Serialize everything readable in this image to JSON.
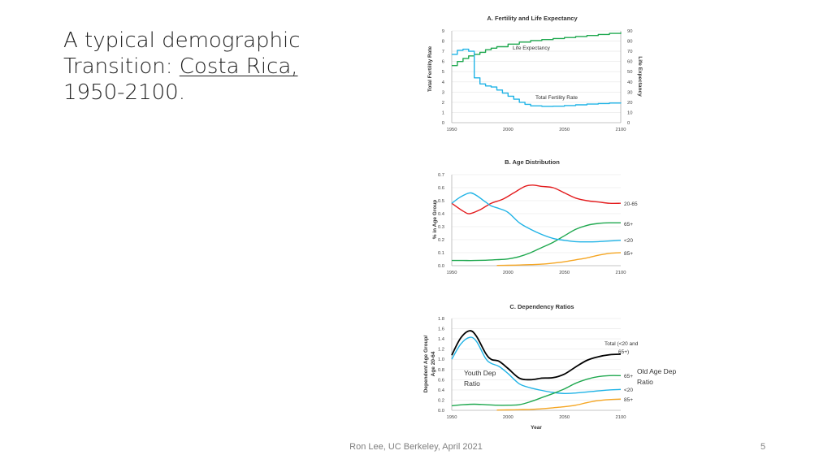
{
  "slide": {
    "title_line1": "A typical demographic",
    "title_line2_prefix": "Transition: ",
    "title_line2_emphasis": "Costa Rica,",
    "title_line3": "1950-2100.",
    "footer": "Ron Lee, UC Berkeley, April 2021",
    "page_number": "5"
  },
  "chart_data": [
    {
      "type": "line",
      "title": "A. Fertility and Life Expectancy",
      "ylabel": "Total Fertility Rate",
      "y2label": "Life Expectancy",
      "xlabel": "",
      "xlim": [
        1950,
        2100
      ],
      "ylim": [
        0,
        9
      ],
      "y2lim": [
        0,
        90
      ],
      "xticks": [
        1950,
        2000,
        2050,
        2100
      ],
      "yticks": [
        0,
        1,
        2,
        3,
        4,
        5,
        6,
        7,
        8,
        9
      ],
      "y2ticks": [
        0,
        10,
        20,
        30,
        40,
        50,
        60,
        70,
        80,
        90
      ],
      "series": [
        {
          "name": "Life Expectancy",
          "axis": "right",
          "color": "#1fa84f",
          "step": true,
          "x": [
            1950,
            1955,
            1960,
            1965,
            1970,
            1975,
            1980,
            1985,
            1990,
            2000,
            2010,
            2020,
            2030,
            2040,
            2050,
            2060,
            2070,
            2080,
            2090,
            2100
          ],
          "y": [
            56,
            60,
            63,
            65.5,
            67,
            69,
            71.5,
            73,
            74.5,
            77,
            79,
            80.5,
            81.5,
            82.5,
            83.5,
            84.5,
            85.5,
            86.5,
            87.5,
            88.5
          ]
        },
        {
          "name": "Total Fertility Rate",
          "axis": "left",
          "color": "#1fb3e6",
          "step": true,
          "x": [
            1950,
            1955,
            1960,
            1965,
            1970,
            1975,
            1980,
            1985,
            1990,
            1995,
            2000,
            2005,
            2010,
            2015,
            2020,
            2030,
            2040,
            2050,
            2060,
            2070,
            2080,
            2090,
            2100
          ],
          "y": [
            6.7,
            7.1,
            7.2,
            7.0,
            4.4,
            3.8,
            3.6,
            3.5,
            3.2,
            2.9,
            2.6,
            2.3,
            2.0,
            1.8,
            1.65,
            1.6,
            1.62,
            1.68,
            1.75,
            1.82,
            1.88,
            1.93,
            1.97
          ]
        }
      ],
      "annotations": [
        "Life Expectancy",
        "Total Fertility Rate"
      ]
    },
    {
      "type": "line",
      "title": "B. Age Distribution",
      "ylabel": "% in Age Group",
      "xlabel": "",
      "xlim": [
        1950,
        2100
      ],
      "ylim": [
        0,
        0.7
      ],
      "xticks": [
        1950,
        2000,
        2050,
        2100
      ],
      "yticks": [
        "0.0",
        "0.1",
        "0.2",
        "0.3",
        "0.4",
        "0.5",
        "0.6",
        "0.7"
      ],
      "series": [
        {
          "name": "20-65",
          "color": "#e31a1c",
          "x": [
            1950,
            1960,
            1966,
            1975,
            1985,
            1995,
            2005,
            2015,
            2022,
            2030,
            2040,
            2050,
            2060,
            2070,
            2080,
            2090,
            2100
          ],
          "y": [
            0.48,
            0.42,
            0.4,
            0.43,
            0.48,
            0.51,
            0.56,
            0.61,
            0.62,
            0.61,
            0.6,
            0.56,
            0.52,
            0.5,
            0.49,
            0.48,
            0.48
          ]
        },
        {
          "name": "65+",
          "color": "#1fa84f",
          "x": [
            1950,
            1960,
            1970,
            1980,
            1990,
            2000,
            2010,
            2020,
            2030,
            2040,
            2050,
            2060,
            2070,
            2080,
            2090,
            2100
          ],
          "y": [
            0.04,
            0.04,
            0.04,
            0.042,
            0.046,
            0.052,
            0.07,
            0.1,
            0.14,
            0.18,
            0.23,
            0.28,
            0.31,
            0.325,
            0.33,
            0.33
          ]
        },
        {
          "name": "<20",
          "color": "#1fb3e6",
          "x": [
            1950,
            1958,
            1966,
            1972,
            1980,
            1985,
            1992,
            2000,
            2010,
            2020,
            2030,
            2040,
            2050,
            2060,
            2070,
            2080,
            2090,
            2100
          ],
          "y": [
            0.48,
            0.53,
            0.56,
            0.54,
            0.49,
            0.46,
            0.44,
            0.41,
            0.33,
            0.28,
            0.24,
            0.21,
            0.195,
            0.185,
            0.183,
            0.185,
            0.19,
            0.195
          ]
        },
        {
          "name": "85+",
          "color": "#f5a623",
          "x": [
            1990,
            2000,
            2010,
            2020,
            2030,
            2040,
            2050,
            2060,
            2070,
            2080,
            2090,
            2100
          ],
          "y": [
            0.002,
            0.003,
            0.005,
            0.008,
            0.012,
            0.02,
            0.03,
            0.045,
            0.06,
            0.08,
            0.095,
            0.1
          ]
        }
      ],
      "annotations": [
        "20-65",
        "65+",
        "<20",
        "85+"
      ]
    },
    {
      "type": "line",
      "title": "C. Dependency Ratios",
      "ylabel": "Dependent Age Group/ Age 20-64",
      "xlabel": "Year",
      "xlim": [
        1950,
        2100
      ],
      "ylim": [
        0,
        1.8
      ],
      "xticks": [
        1950,
        2000,
        2050,
        2100
      ],
      "yticks": [
        "0.0",
        "0.2",
        "0.4",
        "0.6",
        "0.8",
        "1.0",
        "1.2",
        "1.4",
        "1.6",
        "1.8"
      ],
      "series": [
        {
          "name": "Total (<20 and 65+)",
          "color": "#000000",
          "x": [
            1950,
            1958,
            1966,
            1972,
            1980,
            1985,
            1992,
            2000,
            2010,
            2020,
            2030,
            2040,
            2050,
            2060,
            2070,
            2080,
            2090,
            2100
          ],
          "y": [
            1.08,
            1.42,
            1.56,
            1.45,
            1.12,
            1.0,
            0.96,
            0.82,
            0.63,
            0.6,
            0.63,
            0.64,
            0.71,
            0.85,
            0.98,
            1.05,
            1.09,
            1.1
          ]
        },
        {
          "name": "<20",
          "color": "#1fb3e6",
          "x": [
            1950,
            1958,
            1966,
            1972,
            1980,
            1985,
            1992,
            2000,
            2010,
            2020,
            2030,
            2040,
            2050,
            2060,
            2070,
            2080,
            2090,
            2100
          ],
          "y": [
            1.0,
            1.3,
            1.43,
            1.35,
            1.02,
            0.92,
            0.86,
            0.72,
            0.52,
            0.44,
            0.39,
            0.35,
            0.33,
            0.34,
            0.36,
            0.38,
            0.4,
            0.41
          ]
        },
        {
          "name": "65+",
          "color": "#1fa84f",
          "x": [
            1950,
            1960,
            1970,
            1980,
            1990,
            2000,
            2010,
            2020,
            2030,
            2040,
            2050,
            2060,
            2070,
            2080,
            2090,
            2100
          ],
          "y": [
            0.09,
            0.11,
            0.12,
            0.11,
            0.1,
            0.1,
            0.11,
            0.17,
            0.25,
            0.33,
            0.42,
            0.53,
            0.61,
            0.66,
            0.68,
            0.68
          ]
        },
        {
          "name": "85+",
          "color": "#f5a623",
          "x": [
            1990,
            2000,
            2010,
            2020,
            2030,
            2040,
            2050,
            2060,
            2070,
            2080,
            2090,
            2100
          ],
          "y": [
            0.005,
            0.008,
            0.012,
            0.018,
            0.03,
            0.05,
            0.07,
            0.1,
            0.15,
            0.19,
            0.21,
            0.22
          ]
        }
      ],
      "annotations": [
        "Total (<20 and 65+)",
        "65+",
        "<20",
        "85+",
        "Youth Dep Ratio",
        "Old Age Dep Ratio"
      ]
    }
  ],
  "labels": {
    "A": {
      "life_exp": "Life Expectancy",
      "tfr": "Total Fertility Rate"
    },
    "B": {
      "r2065": "20-65",
      "r65": "65+",
      "r20": "<20",
      "r85": "85+"
    },
    "C": {
      "total_1": "Total (<20 and",
      "total_2": "65+)",
      "r65": "65+",
      "r20": "<20",
      "r85": "85+",
      "youth_1": "Youth Dep",
      "youth_2": "Ratio",
      "old_1": "Old Age Dep",
      "old_2": "Ratio",
      "ylabel_1": "Dependent Age Group/",
      "ylabel_2": "Age 20-64"
    }
  },
  "colors": {
    "life_expectancy": "#1fa84f",
    "fertility": "#1fb3e6",
    "working_age": "#e31a1c",
    "old_age": "#1fa84f",
    "youth": "#1fb3e6",
    "oldest_old": "#f5a623",
    "total": "#000000"
  }
}
